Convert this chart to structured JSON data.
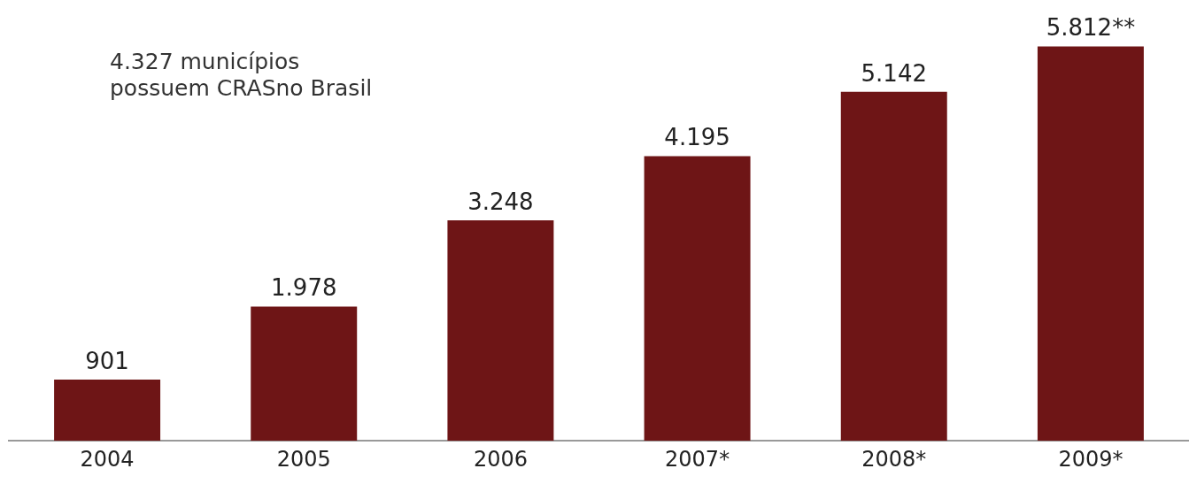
{
  "chart_data": {
    "type": "bar",
    "categories": [
      "2004",
      "2005",
      "2006",
      "2007*",
      "2008*",
      "2009*"
    ],
    "values": [
      901,
      1978,
      3248,
      4195,
      5142,
      5812
    ],
    "value_labels": [
      "901",
      "1.978",
      "3.248",
      "4.195",
      "5.142",
      "5.812**"
    ],
    "color": "#6e1516",
    "grid": false,
    "legend": false,
    "annotations": [
      "4.327 municípios\npossuem CRASno Brasil"
    ]
  }
}
